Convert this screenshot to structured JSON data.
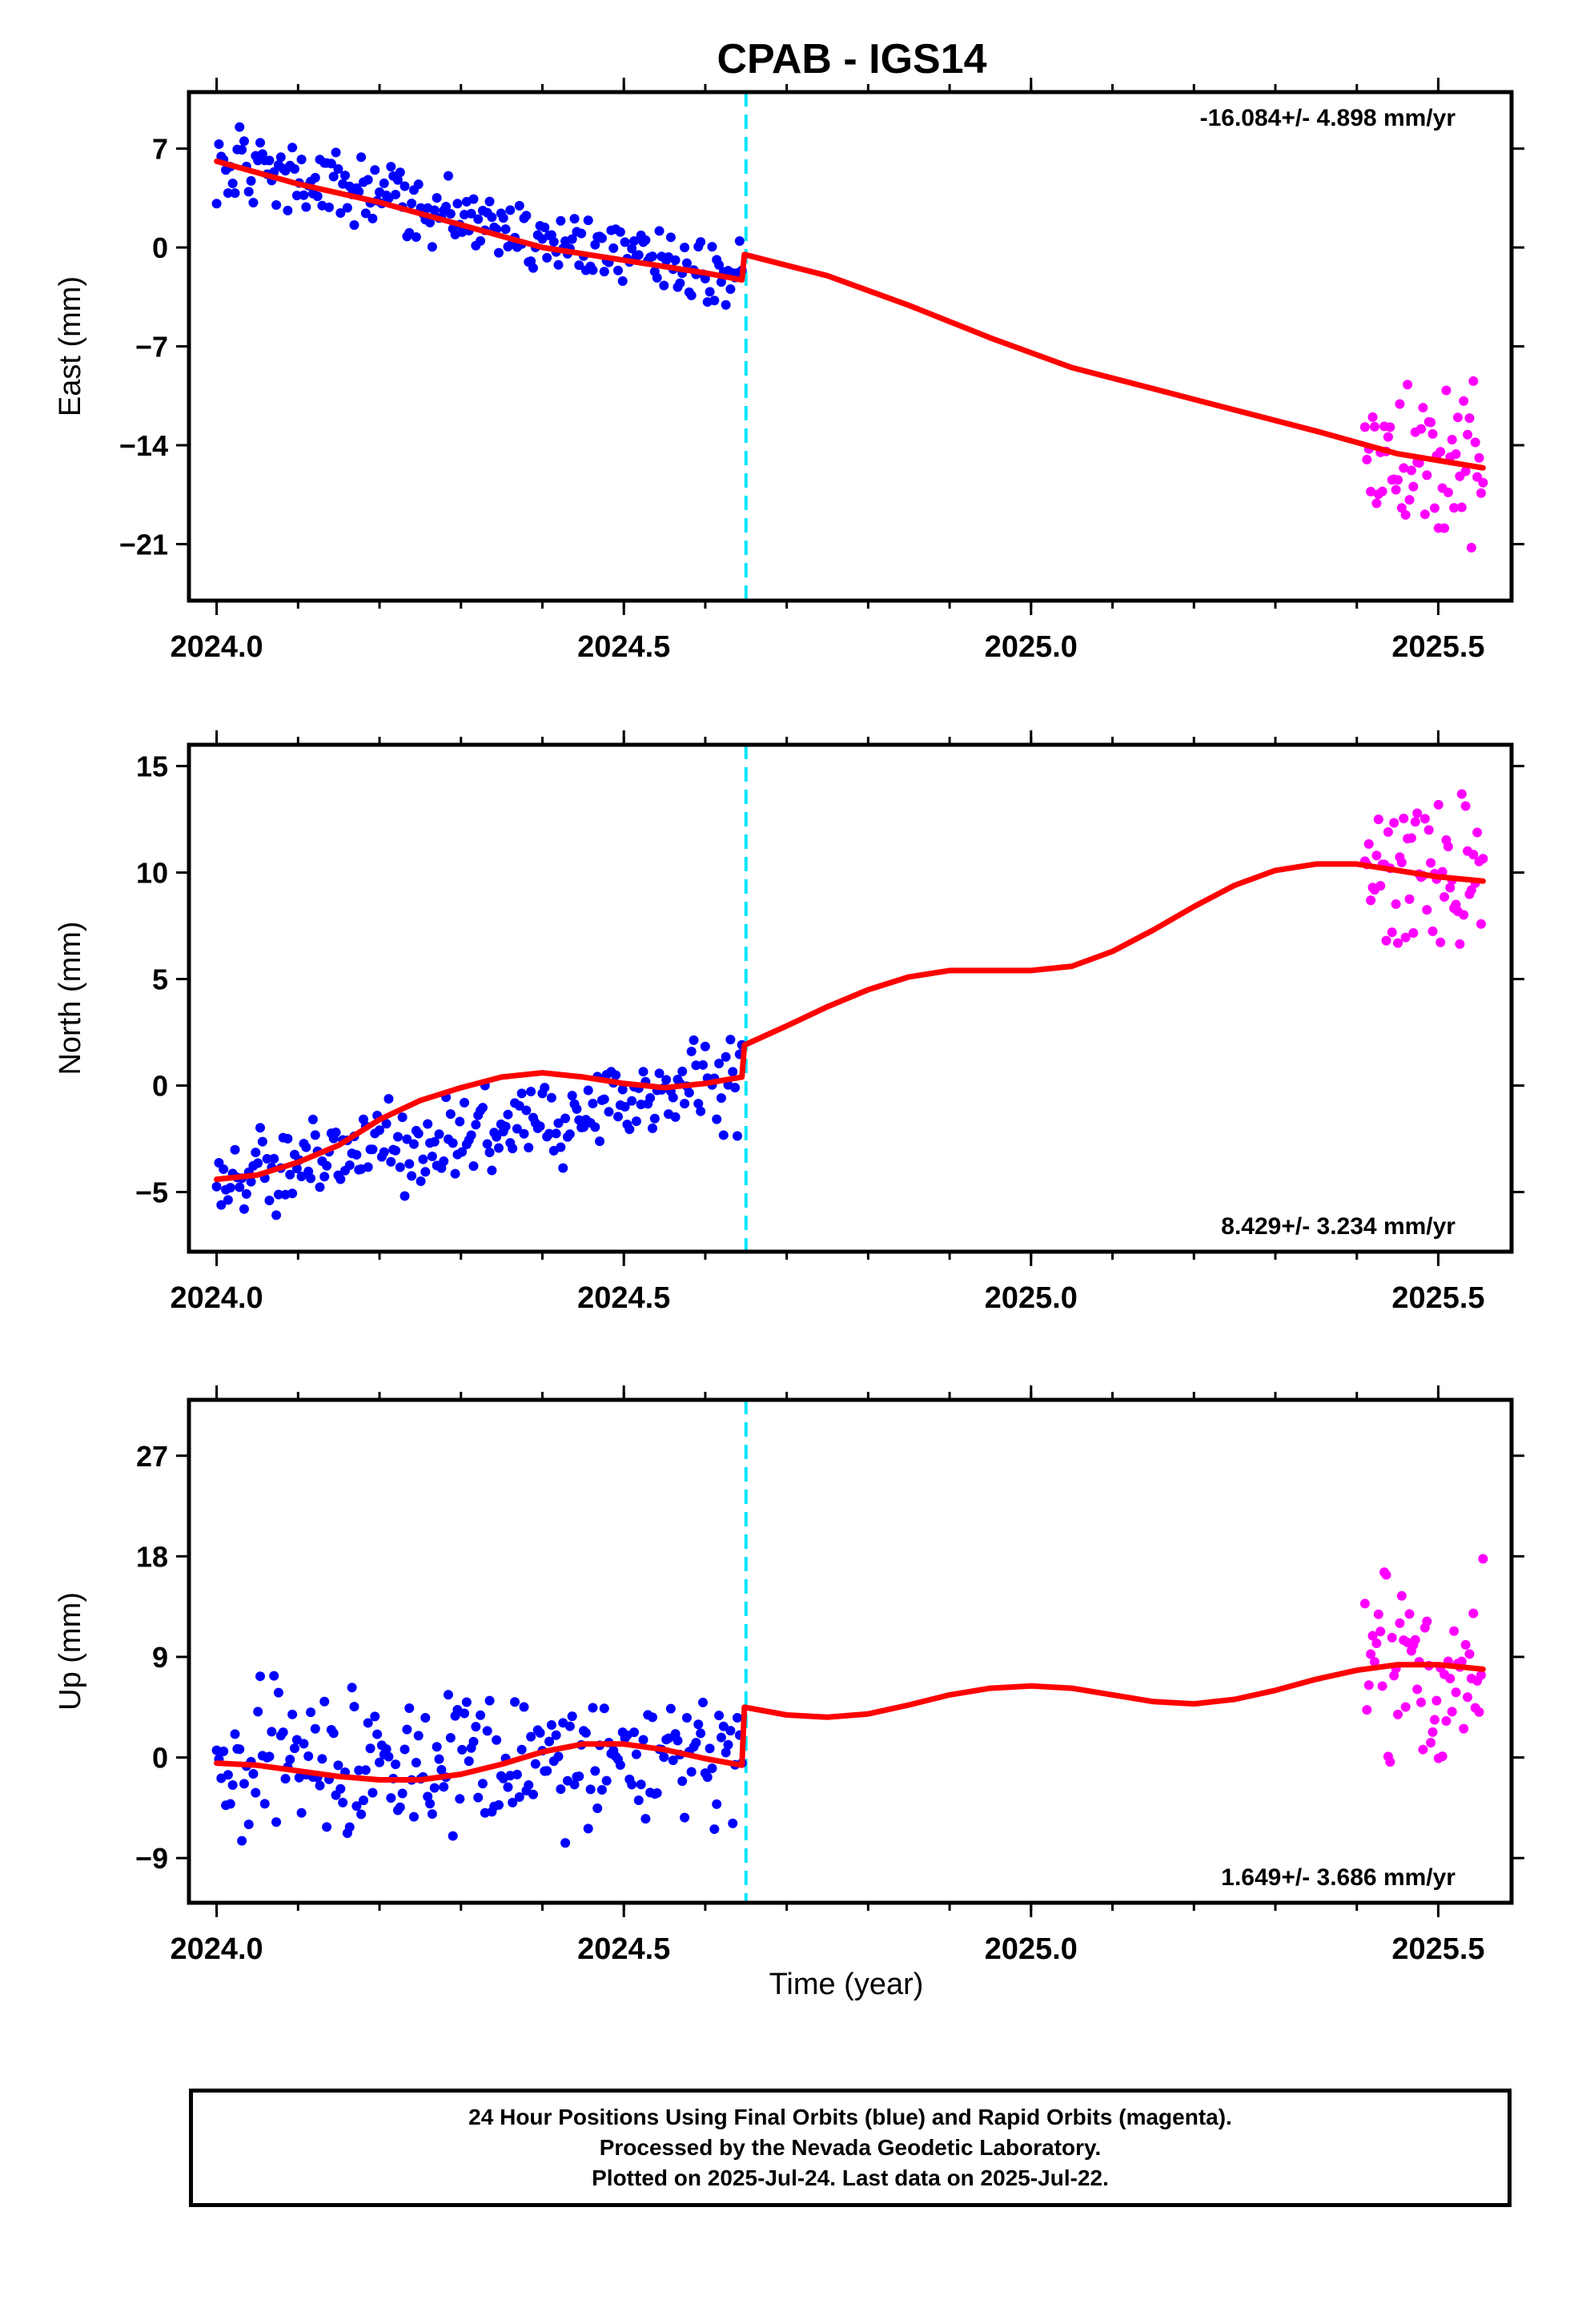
{
  "title": "CPAB - IGS14",
  "xlabel": "Time (year)",
  "footer": {
    "line1": "24 Hour Positions Using Final Orbits (blue) and Rapid Orbits (magenta).",
    "line2": "Processed by the Nevada Geodetic Laboratory.",
    "line3": "Plotted on 2025-Jul-24. Last data on 2025-Jul-22."
  },
  "colors": {
    "final": "#0000ff",
    "rapid": "#ff00ff",
    "model": "#ff0000",
    "break_line": "#00e5ff",
    "axis": "#000000"
  },
  "chart_data": [
    {
      "type": "scatter",
      "ylabel": "East (mm)",
      "rate_text": "-16.084+/- 4.898 mm/yr",
      "rate_position": "top-right",
      "xlim": [
        1966,
        2025.59
      ],
      "xlim_note": "",
      "x_range": [
        2023.966,
        2025.59
      ],
      "ylim": [
        -25.0,
        11.0
      ],
      "yticks": [
        7,
        0,
        -7,
        -14,
        -21
      ],
      "xticks": [
        2024.0,
        2024.5,
        2025.0,
        2025.5
      ],
      "xtick_labels": [
        "2024.0",
        "2024.5",
        "2025.0",
        "2025.5"
      ],
      "break_x": 2024.65,
      "final_trend": {
        "start": [
          2024.0,
          6.0
        ],
        "end": [
          2024.645,
          -2.2
        ],
        "noise": 1.6
      },
      "rapid_trend": {
        "start": [
          2025.41,
          -14.0
        ],
        "end": [
          2025.555,
          -15.5
        ],
        "noise": 4.0
      },
      "model_curve": [
        [
          2024.0,
          6.1
        ],
        [
          2024.1,
          4.5
        ],
        [
          2024.2,
          3.2
        ],
        [
          2024.3,
          1.6
        ],
        [
          2024.4,
          0.0
        ],
        [
          2024.5,
          -0.9
        ],
        [
          2024.6,
          -1.8
        ],
        [
          2024.645,
          -2.3
        ],
        [
          2024.648,
          -0.5
        ],
        [
          2024.75,
          -2.0
        ],
        [
          2024.85,
          -4.1
        ],
        [
          2024.95,
          -6.4
        ],
        [
          2025.05,
          -8.5
        ],
        [
          2025.15,
          -10.0
        ],
        [
          2025.25,
          -11.5
        ],
        [
          2025.35,
          -13.0
        ],
        [
          2025.45,
          -14.6
        ],
        [
          2025.555,
          -15.6
        ]
      ]
    },
    {
      "type": "scatter",
      "ylabel": "North (mm)",
      "rate_text": "8.429+/- 3.234 mm/yr",
      "rate_position": "bottom-right",
      "x_range": [
        2023.966,
        2025.59
      ],
      "ylim": [
        -7.8,
        16.0
      ],
      "yticks": [
        15,
        10,
        5,
        0,
        -5
      ],
      "xticks": [
        2024.0,
        2024.5,
        2025.0,
        2025.5
      ],
      "xtick_labels": [
        "2024.0",
        "2024.5",
        "2025.0",
        "2025.5"
      ],
      "break_x": 2024.65,
      "final_trend": {
        "start": [
          2024.0,
          -4.4
        ],
        "end": [
          2024.645,
          0.4
        ],
        "noise": 1.5
      },
      "rapid_trend": {
        "start": [
          2025.41,
          10.0
        ],
        "end": [
          2025.555,
          9.6
        ],
        "noise": 2.5
      },
      "model_curve": [
        [
          2024.0,
          -4.4
        ],
        [
          2024.05,
          -4.2
        ],
        [
          2024.1,
          -3.6
        ],
        [
          2024.15,
          -2.8
        ],
        [
          2024.2,
          -1.6
        ],
        [
          2024.25,
          -0.7
        ],
        [
          2024.3,
          -0.1
        ],
        [
          2024.35,
          0.4
        ],
        [
          2024.4,
          0.6
        ],
        [
          2024.45,
          0.4
        ],
        [
          2024.5,
          0.1
        ],
        [
          2024.55,
          -0.1
        ],
        [
          2024.6,
          0.1
        ],
        [
          2024.645,
          0.4
        ],
        [
          2024.648,
          1.9
        ],
        [
          2024.7,
          2.8
        ],
        [
          2024.75,
          3.7
        ],
        [
          2024.8,
          4.5
        ],
        [
          2024.85,
          5.1
        ],
        [
          2024.9,
          5.4
        ],
        [
          2024.95,
          5.4
        ],
        [
          2025.0,
          5.4
        ],
        [
          2025.05,
          5.6
        ],
        [
          2025.1,
          6.3
        ],
        [
          2025.15,
          7.3
        ],
        [
          2025.2,
          8.4
        ],
        [
          2025.25,
          9.4
        ],
        [
          2025.3,
          10.1
        ],
        [
          2025.35,
          10.4
        ],
        [
          2025.4,
          10.4
        ],
        [
          2025.45,
          10.1
        ],
        [
          2025.5,
          9.8
        ],
        [
          2025.555,
          9.6
        ]
      ]
    },
    {
      "type": "scatter",
      "ylabel": "Up (mm)",
      "rate_text": "1.649+/- 3.686 mm/yr",
      "rate_position": "bottom-right",
      "x_range": [
        2023.966,
        2025.59
      ],
      "ylim": [
        -13.0,
        32.0
      ],
      "yticks": [
        27,
        18,
        9,
        0,
        -9
      ],
      "xticks": [
        2024.0,
        2024.5,
        2025.0,
        2025.5
      ],
      "xtick_labels": [
        "2024.0",
        "2024.5",
        "2025.0",
        "2025.5"
      ],
      "break_x": 2024.65,
      "final_trend": {
        "start": [
          2024.0,
          -0.5
        ],
        "end": [
          2024.645,
          -0.5
        ],
        "noise": 4.5
      },
      "rapid_trend": {
        "start": [
          2025.41,
          7.0
        ],
        "end": [
          2025.555,
          8.0
        ],
        "noise": 7.5
      },
      "model_curve": [
        [
          2024.0,
          -0.5
        ],
        [
          2024.05,
          -0.7
        ],
        [
          2024.1,
          -1.2
        ],
        [
          2024.15,
          -1.7
        ],
        [
          2024.2,
          -2.0
        ],
        [
          2024.25,
          -2.0
        ],
        [
          2024.3,
          -1.5
        ],
        [
          2024.35,
          -0.6
        ],
        [
          2024.4,
          0.5
        ],
        [
          2024.45,
          1.2
        ],
        [
          2024.5,
          1.2
        ],
        [
          2024.55,
          0.7
        ],
        [
          2024.6,
          -0.1
        ],
        [
          2024.645,
          -0.7
        ],
        [
          2024.648,
          4.5
        ],
        [
          2024.7,
          3.8
        ],
        [
          2024.75,
          3.6
        ],
        [
          2024.8,
          3.9
        ],
        [
          2024.85,
          4.7
        ],
        [
          2024.9,
          5.6
        ],
        [
          2024.95,
          6.2
        ],
        [
          2025.0,
          6.4
        ],
        [
          2025.05,
          6.2
        ],
        [
          2025.1,
          5.6
        ],
        [
          2025.15,
          5.0
        ],
        [
          2025.2,
          4.8
        ],
        [
          2025.25,
          5.2
        ],
        [
          2025.3,
          6.0
        ],
        [
          2025.35,
          7.0
        ],
        [
          2025.4,
          7.8
        ],
        [
          2025.45,
          8.3
        ],
        [
          2025.5,
          8.3
        ],
        [
          2025.555,
          7.9
        ]
      ]
    }
  ]
}
